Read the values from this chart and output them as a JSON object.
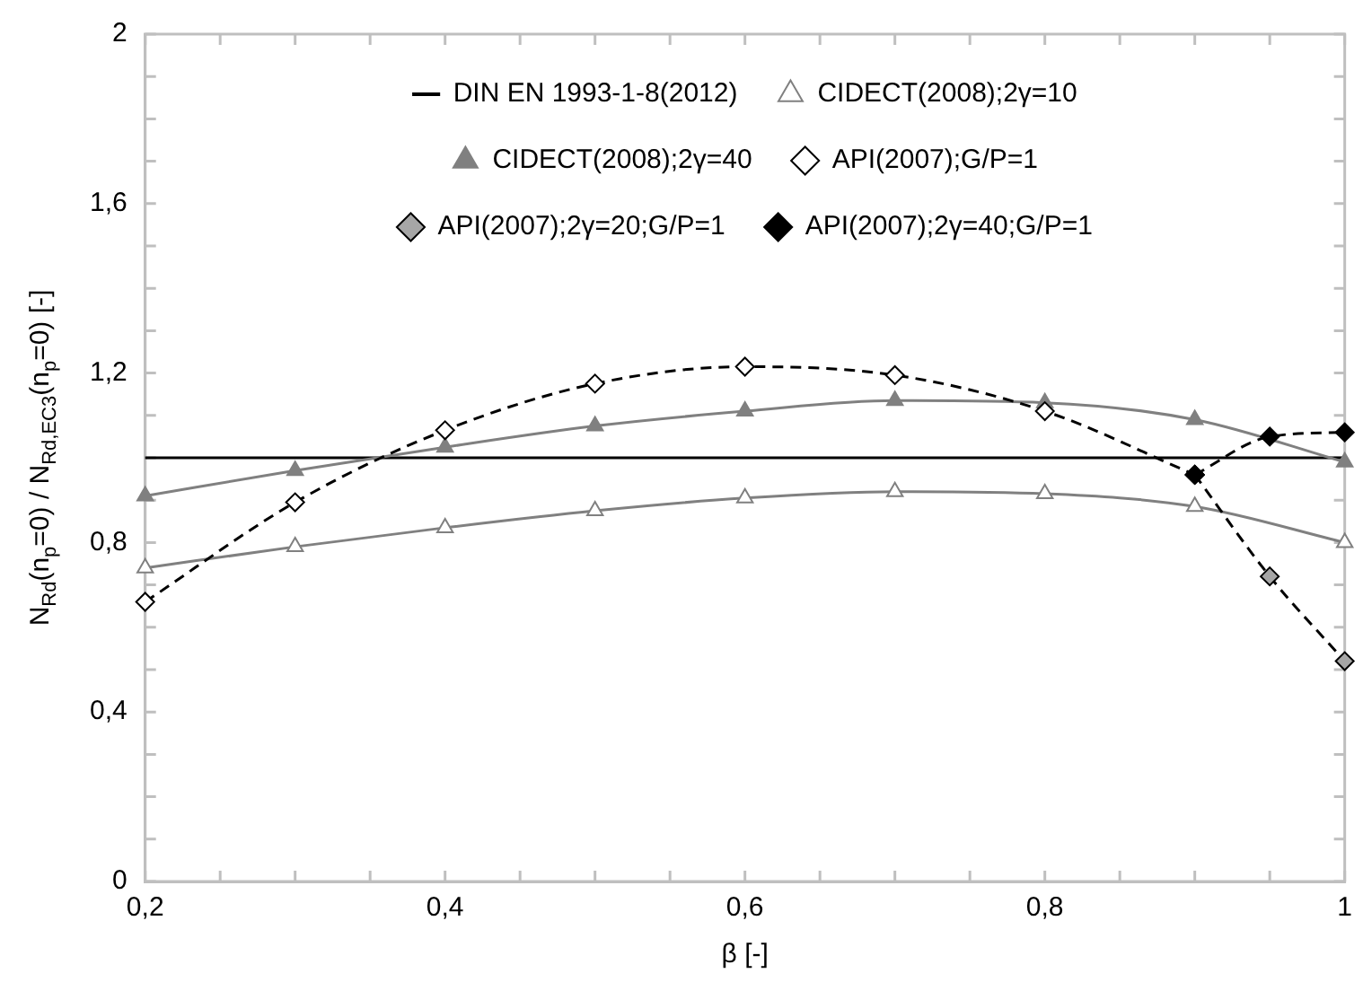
{
  "chart_data": {
    "type": "line",
    "xlabel": "β [-]",
    "ylabel": "N$_{Rd}$(n$_{p}$=0) / N$_{Rd,EC3}$(n$_{p}$=0) [-]",
    "xlim": [
      0.2,
      1
    ],
    "ylim": [
      0,
      2
    ],
    "xticks": [
      {
        "value": 0.2,
        "label": "0,2"
      },
      {
        "value": 0.25,
        "label": null
      },
      {
        "value": 0.3,
        "label": null
      },
      {
        "value": 0.35,
        "label": null
      },
      {
        "value": 0.4,
        "label": "0,4"
      },
      {
        "value": 0.45,
        "label": null
      },
      {
        "value": 0.5,
        "label": null
      },
      {
        "value": 0.55,
        "label": null
      },
      {
        "value": 0.6,
        "label": "0,6"
      },
      {
        "value": 0.65,
        "label": null
      },
      {
        "value": 0.7,
        "label": null
      },
      {
        "value": 0.75,
        "label": null
      },
      {
        "value": 0.8,
        "label": "0,8"
      },
      {
        "value": 0.85,
        "label": null
      },
      {
        "value": 0.9,
        "label": null
      },
      {
        "value": 0.95,
        "label": null
      },
      {
        "value": 1,
        "label": "1"
      }
    ],
    "yticks": [
      0,
      {
        "value": 0.1,
        "label": null
      },
      {
        "value": 0.2,
        "label": null
      },
      {
        "value": 0.3,
        "label": null
      },
      {
        "value": 0.4,
        "label": "0,4"
      },
      {
        "value": 0.5,
        "label": null
      },
      {
        "value": 0.6,
        "label": null
      },
      {
        "value": 0.7,
        "label": null
      },
      {
        "value": 0.8,
        "label": "0,8"
      },
      {
        "value": 0.9,
        "label": null
      },
      {
        "value": 1.0,
        "label": null
      },
      {
        "value": 1.1,
        "label": null
      },
      {
        "value": 1.2,
        "label": "1,2"
      },
      {
        "value": 1.3,
        "label": null
      },
      {
        "value": 1.4,
        "label": null
      },
      {
        "value": 1.5,
        "label": null
      },
      {
        "value": 1.6,
        "label": "1,6"
      },
      {
        "value": 1.7,
        "label": null
      },
      {
        "value": 1.8,
        "label": null
      },
      {
        "value": 1.9,
        "label": null
      },
      2
    ],
    "legend": "top",
    "series": [
      {
        "name": "DIN EN 1993-1-8(2012)",
        "color": "#000000",
        "marker": "none",
        "line_style": "solid",
        "x": [
          0.2,
          1
        ],
        "values": [
          1,
          1
        ]
      },
      {
        "name": "CIDECT(2008);2γ=10",
        "color": "#808080",
        "marker": "triangle",
        "line_style": "solid",
        "x": [
          0.2,
          0.3,
          0.4,
          0.5,
          0.6,
          0.7,
          0.8,
          0.9,
          1
        ],
        "values": [
          0.74,
          0.79,
          0.835,
          0.875,
          0.905,
          0.92,
          0.915,
          0.885,
          0.8
        ],
        "colors": [
          "#ffffff",
          "#ffffff",
          "#ffffff",
          "#ffffff",
          "#ffffff",
          "#ffffff",
          "#ffffff",
          "#ffffff",
          "#ffffff"
        ]
      },
      {
        "name": "CIDECT(2008);2γ=40",
        "color": "#808080",
        "marker": "triangle",
        "line_style": "solid",
        "x": [
          0.2,
          0.3,
          0.4,
          0.5,
          0.6,
          0.7,
          0.8,
          0.9,
          1
        ],
        "values": [
          0.91,
          0.97,
          1.025,
          1.075,
          1.11,
          1.135,
          1.13,
          1.09,
          0.99
        ]
      },
      {
        "name": "API(2007);G/P=1",
        "color": "#000000",
        "marker": "diamond",
        "line_style": "dashed",
        "x": [
          0.2,
          0.3,
          0.4,
          0.5,
          0.6,
          0.7,
          0.8,
          0.9
        ],
        "values": [
          0.66,
          0.895,
          1.065,
          1.175,
          1.215,
          1.195,
          1.11,
          0.96
        ],
        "colors": [
          "#ffffff",
          "#ffffff",
          "#ffffff",
          "#ffffff",
          "#ffffff",
          "#ffffff",
          "#ffffff",
          "#ffffff"
        ]
      },
      {
        "name": "API(2007);2γ=20;G/P=1",
        "color": "#000000",
        "marker": "diamond",
        "line_style": "dashed",
        "x": [
          0.9,
          0.95,
          1
        ],
        "values": [
          0.96,
          0.72,
          0.52
        ],
        "colors": [
          "#a6a6a6",
          "#a6a6a6",
          "#a6a6a6"
        ]
      },
      {
        "name": "API(2007);2γ=40;G/P=1",
        "color": "#000000",
        "marker": "diamond",
        "line_style": "dashed",
        "x": [
          0.9,
          0.95,
          1
        ],
        "values": [
          0.96,
          1.05,
          1.06
        ]
      }
    ]
  }
}
